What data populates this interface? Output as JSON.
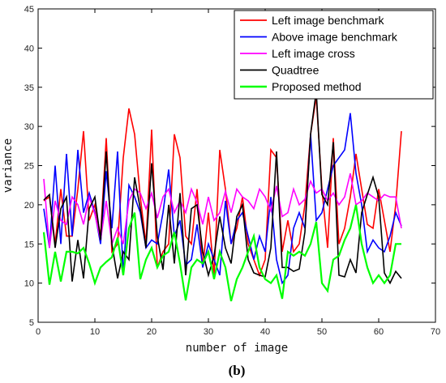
{
  "caption": "(b)",
  "chart_data": {
    "type": "line",
    "title": "",
    "xlabel": "number of image",
    "ylabel": "variance",
    "xlim": [
      0,
      70
    ],
    "ylim": [
      5,
      45
    ],
    "xticks": [
      0,
      10,
      20,
      30,
      40,
      50,
      60,
      70
    ],
    "yticks": [
      5,
      10,
      15,
      20,
      25,
      30,
      35,
      40,
      45
    ],
    "grid": false,
    "legend_position": "top-right",
    "x": [
      1,
      2,
      3,
      4,
      5,
      6,
      7,
      8,
      9,
      10,
      11,
      12,
      13,
      14,
      15,
      16,
      17,
      18,
      19,
      20,
      21,
      22,
      23,
      24,
      25,
      26,
      27,
      28,
      29,
      30,
      31,
      32,
      33,
      34,
      35,
      36,
      37,
      38,
      39,
      40,
      41,
      42,
      43,
      44,
      45,
      46,
      47,
      48,
      49,
      50,
      51,
      52,
      53,
      54,
      55,
      56,
      57,
      58,
      59,
      60,
      61,
      62,
      63,
      64
    ],
    "series": [
      {
        "name": "Left image benchmark",
        "color": "#ff0000",
        "values": [
          20.5,
          21,
          15,
          22,
          16,
          16,
          22,
          29.4,
          18,
          20,
          16,
          28.5,
          14,
          15,
          26,
          32.3,
          29,
          21,
          15,
          29.6,
          12,
          14,
          15,
          29,
          26,
          16,
          15,
          22,
          12,
          19,
          11,
          27,
          22,
          15,
          17,
          21,
          15,
          13,
          11,
          13,
          27,
          26,
          14,
          18,
          14,
          15,
          20,
          29,
          33.8,
          22,
          14.5,
          28.5,
          15,
          17,
          21,
          26.5,
          22,
          17.5,
          17,
          22,
          18,
          14,
          20,
          29.4
        ]
      },
      {
        "name": "Above image benchmark",
        "color": "#0000ff",
        "values": [
          19.5,
          14.5,
          25,
          15,
          26.5,
          16,
          27,
          19,
          21.5,
          19,
          15,
          24.3,
          17,
          26.8,
          11,
          22.5,
          21,
          19,
          14.5,
          15.5,
          15,
          19,
          24.5,
          16,
          18,
          12.3,
          13,
          17.5,
          12,
          15,
          13,
          11,
          20.5,
          15,
          18,
          19,
          16,
          13,
          16,
          14,
          21,
          13,
          10,
          11,
          17,
          19,
          17,
          29,
          18,
          19,
          22,
          25,
          26,
          27,
          31.7,
          24,
          20,
          14,
          15.5,
          14.5,
          14,
          16,
          19,
          17.3
        ]
      },
      {
        "name": "Left image cross",
        "color": "#ff00ff",
        "values": [
          23.3,
          14.5,
          20.5,
          18,
          17.5,
          21,
          20,
          17.5,
          21,
          18.8,
          15.5,
          20.5,
          15,
          17,
          15,
          20.5,
          22,
          21.5,
          19.5,
          21.5,
          18.3,
          21,
          22,
          19,
          20.5,
          19,
          22,
          20.3,
          17.5,
          21,
          18,
          19,
          21.7,
          19,
          22,
          21,
          20.5,
          19.5,
          22,
          21,
          19.2,
          22.4,
          18.5,
          19,
          22,
          20,
          20.7,
          23,
          21.5,
          22,
          20.5,
          21.5,
          20,
          21,
          24,
          20,
          20.5,
          21.5,
          21,
          20.5,
          21.3,
          21,
          21,
          17
        ]
      },
      {
        "name": "Quadtree",
        "color": "#000000",
        "values": [
          20.6,
          21.3,
          14.5,
          19.5,
          21,
          10.2,
          15.5,
          10.6,
          19.5,
          21,
          15.5,
          26.8,
          15,
          10.6,
          14,
          13,
          23.5,
          19.5,
          14.5,
          25.3,
          16,
          11.7,
          20,
          12.5,
          21.5,
          11,
          19.5,
          20,
          14,
          11,
          13.5,
          18.5,
          14.5,
          12.5,
          18.5,
          20,
          13,
          11.3,
          11,
          10.8,
          14.5,
          26.8,
          12,
          12,
          11.5,
          11.8,
          16.5,
          29,
          34.5,
          21.3,
          20,
          28,
          11,
          10.8,
          13,
          11.3,
          19,
          21.3,
          23.5,
          21,
          11.3,
          10,
          11.5,
          10.6
        ]
      },
      {
        "name": "Proposed method",
        "color": "#00ff00",
        "values": [
          16.5,
          9.8,
          14,
          10.2,
          14,
          14,
          13.8,
          14.5,
          12.5,
          10,
          12,
          12.7,
          13.3,
          15.8,
          11,
          17,
          19,
          10.5,
          13,
          14.5,
          12,
          13.5,
          14,
          16.5,
          12.5,
          7.8,
          12,
          13,
          12.5,
          14,
          10.5,
          14,
          12,
          7.7,
          10.5,
          12,
          14,
          16,
          12,
          10.5,
          10,
          11,
          8,
          14,
          13.5,
          14,
          13.5,
          15,
          17.8,
          10,
          9,
          13,
          13.5,
          15.5,
          17,
          20,
          15,
          12,
          10,
          11,
          10,
          11,
          15,
          15
        ]
      }
    ]
  }
}
